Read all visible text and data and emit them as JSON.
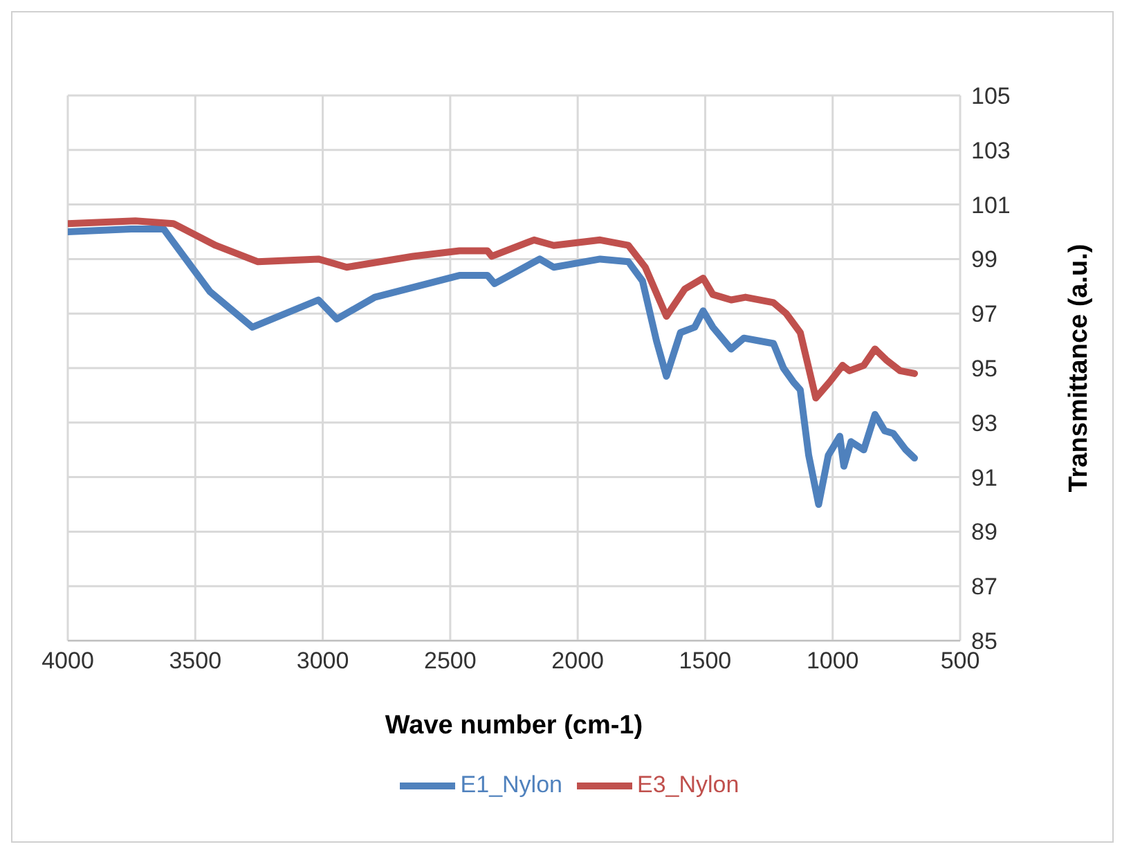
{
  "chart_data": {
    "type": "line",
    "xlabel": "Wave number (cm-1)",
    "ylabel": "Transmittance (a.u.)",
    "xlim": [
      4000,
      500
    ],
    "xticks": [
      4000,
      3500,
      3000,
      2500,
      2000,
      1500,
      1000,
      500
    ],
    "ylim": [
      85,
      105
    ],
    "yticks": [
      85,
      87,
      89,
      91,
      93,
      95,
      97,
      99,
      101,
      103,
      105
    ],
    "grid": true,
    "legend": "bottom",
    "marker": "none",
    "line_style": "solid",
    "series": [
      {
        "name": "E1_Nylon",
        "color": "#4f81bd",
        "x": [
          4000,
          3751,
          3624,
          3442,
          3276,
          3017,
          2945,
          2796,
          2464,
          2354,
          2326,
          2149,
          2094,
          1912,
          1801,
          1746,
          1691,
          1652,
          1597,
          1541,
          1508,
          1470,
          1398,
          1348,
          1232,
          1193,
          1155,
          1127,
          1094,
          1055,
          1017,
          972,
          956,
          928,
          878,
          834,
          796,
          762,
          713,
          679
        ],
        "values": [
          100.0,
          100.1,
          100.1,
          97.8,
          96.5,
          97.5,
          96.8,
          97.6,
          98.4,
          98.4,
          98.1,
          99.0,
          98.7,
          99.0,
          98.9,
          98.2,
          96.0,
          94.7,
          96.3,
          96.5,
          97.1,
          96.5,
          95.7,
          96.1,
          95.9,
          95.0,
          94.5,
          94.2,
          91.8,
          90.0,
          91.8,
          92.5,
          91.4,
          92.3,
          92.0,
          93.3,
          92.7,
          92.6,
          92.0,
          91.7
        ]
      },
      {
        "name": "E3_Nylon",
        "color": "#c0504d",
        "x": [
          4000,
          3735,
          3586,
          3420,
          3254,
          3017,
          2906,
          2646,
          2464,
          2354,
          2337,
          2171,
          2094,
          1912,
          1801,
          1735,
          1652,
          1580,
          1508,
          1470,
          1398,
          1342,
          1232,
          1182,
          1127,
          1099,
          1066,
          1011,
          961,
          934,
          878,
          834,
          790,
          735,
          679
        ],
        "values": [
          100.3,
          100.4,
          100.3,
          99.5,
          98.9,
          99.0,
          98.7,
          99.1,
          99.3,
          99.3,
          99.1,
          99.7,
          99.5,
          99.7,
          99.5,
          98.7,
          96.9,
          97.9,
          98.3,
          97.7,
          97.5,
          97.6,
          97.4,
          97.0,
          96.3,
          95.2,
          93.9,
          94.5,
          95.1,
          94.9,
          95.1,
          95.7,
          95.3,
          94.9,
          94.8
        ]
      }
    ]
  }
}
